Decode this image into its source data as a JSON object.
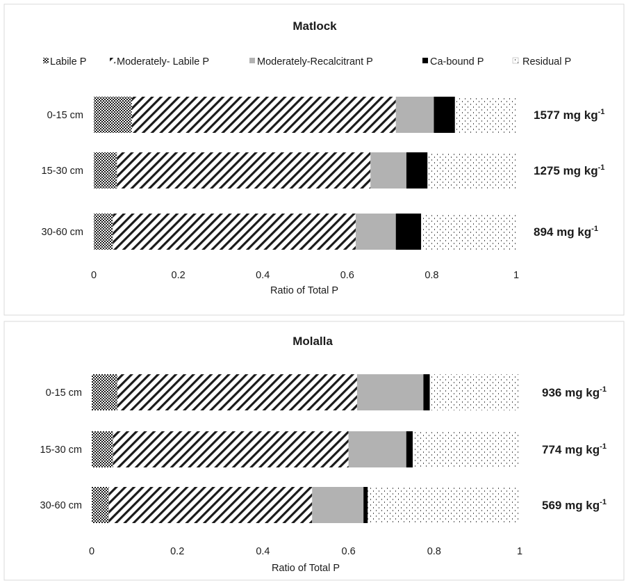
{
  "chart_data": [
    {
      "type": "bar",
      "orientation": "horizontal",
      "stacked": true,
      "title": "Matlock",
      "xlabel": "Ratio of Total P",
      "xlim": [
        0,
        1
      ],
      "xticks": [
        "0",
        "0.2",
        "0.4",
        "0.6",
        "0.8",
        "1"
      ],
      "categories": [
        "0-15 cm",
        "15-30 cm",
        "30-60 cm"
      ],
      "totals": [
        "1577 mg kg",
        "1275 mg kg",
        "894 mg kg"
      ],
      "total_superscript": "-1",
      "series": [
        {
          "name": "Labile P",
          "pattern": "dots",
          "values": [
            0.09,
            0.055,
            0.045
          ]
        },
        {
          "name": "Moderately- Labile P",
          "pattern": "diagonal",
          "values": [
            0.625,
            0.6,
            0.575
          ]
        },
        {
          "name": "Moderately-Recalcitrant P",
          "pattern": "gray",
          "values": [
            0.09,
            0.085,
            0.095
          ]
        },
        {
          "name": "Ca-bound P",
          "pattern": "black",
          "values": [
            0.05,
            0.05,
            0.06
          ]
        },
        {
          "name": "Residual P",
          "pattern": "dashes",
          "values": [
            0.145,
            0.21,
            0.225
          ]
        }
      ],
      "legend_position": "top"
    },
    {
      "type": "bar",
      "orientation": "horizontal",
      "stacked": true,
      "title": "Molalla",
      "xlabel": "Ratio of Total P",
      "xlim": [
        0,
        1
      ],
      "xticks": [
        "0",
        "0.2",
        "0.4",
        "0.6",
        "0.8",
        "1"
      ],
      "categories": [
        "0-15 cm",
        "15-30 cm",
        "30-60 cm"
      ],
      "totals": [
        "936 mg kg",
        "774 mg kg",
        "569 mg kg"
      ],
      "total_superscript": "-1",
      "series": [
        {
          "name": "Labile P",
          "pattern": "dots",
          "values": [
            0.06,
            0.05,
            0.04
          ]
        },
        {
          "name": "Moderately- Labile P",
          "pattern": "diagonal",
          "values": [
            0.56,
            0.55,
            0.475
          ]
        },
        {
          "name": "Moderately-Recalcitrant P",
          "pattern": "gray",
          "values": [
            0.155,
            0.135,
            0.12
          ]
        },
        {
          "name": "Ca-bound P",
          "pattern": "black",
          "values": [
            0.015,
            0.015,
            0.01
          ]
        },
        {
          "name": "Residual P",
          "pattern": "dashes",
          "values": [
            0.21,
            0.25,
            0.355
          ]
        }
      ]
    }
  ]
}
